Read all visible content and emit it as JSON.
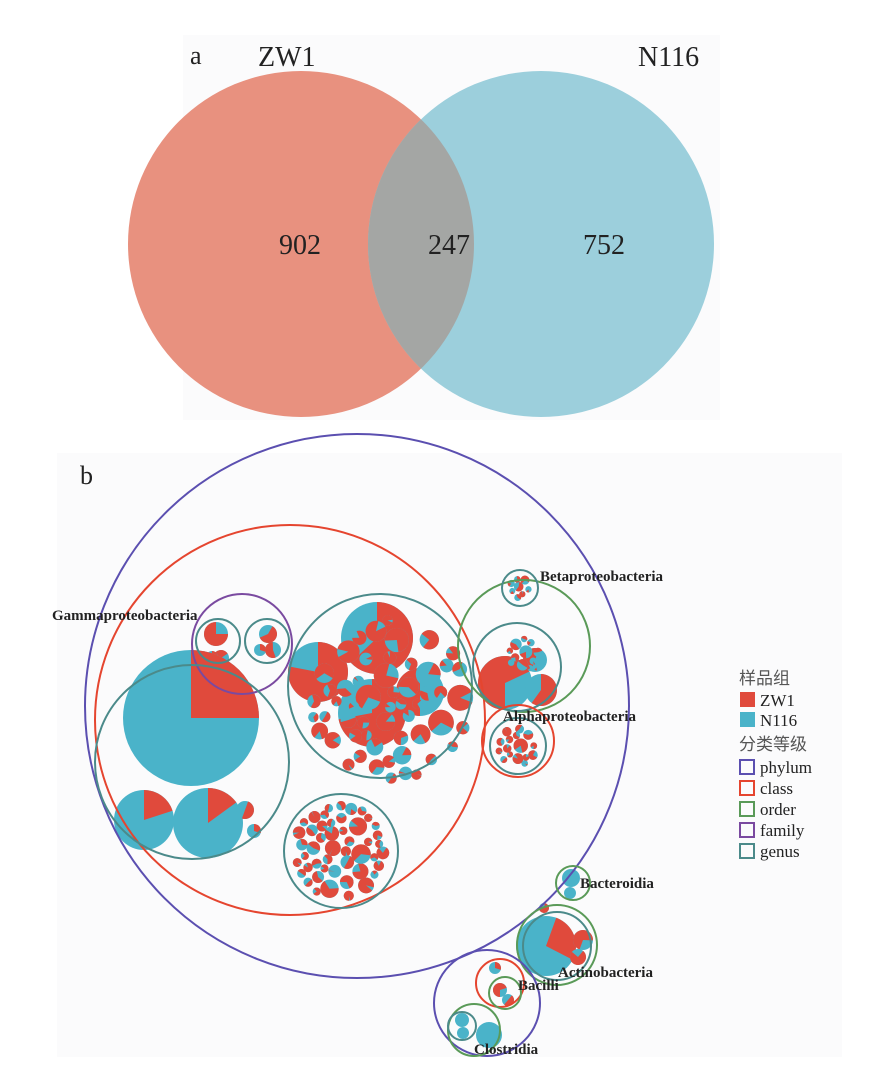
{
  "panel_a": {
    "label": "a",
    "set_left": {
      "name": "ZW1",
      "color": "#e8917f",
      "label_color": "#5a5aa8",
      "count": "902"
    },
    "set_right": {
      "name": "N116",
      "color": "#9ccfdc",
      "label_color": "#d9453a",
      "count": "752"
    },
    "overlap": {
      "count": "247",
      "color": "#a4a6a4"
    }
  },
  "panel_b": {
    "label": "b",
    "fill_colors": {
      "ZW1": "#e04a3c",
      "N116": "#4ab3c9"
    },
    "level_colors": {
      "phylum": "#5b4fb0",
      "class": "#e5452f",
      "order": "#5a9a58",
      "family": "#7a4aa0",
      "genus": "#4b8a8a"
    },
    "taxa_labels": [
      "Gammaproteobacteria",
      "Betaproteobacteria",
      "Alphaproteobacteria",
      "Bacteroidia",
      "Actinobacteria",
      "Bacilli",
      "Clostridia"
    ],
    "legend": {
      "sample_title": "样品组",
      "samples": [
        {
          "name": "ZW1",
          "color": "#e04a3c"
        },
        {
          "name": "N116",
          "color": "#4ab3c9"
        }
      ],
      "level_title": "分类等级",
      "levels": [
        {
          "name": "phylum",
          "color": "#5b4fb0"
        },
        {
          "name": "class",
          "color": "#e5452f"
        },
        {
          "name": "order",
          "color": "#5a9a58"
        },
        {
          "name": "family",
          "color": "#7a4aa0"
        },
        {
          "name": "genus",
          "color": "#4b8a8a"
        }
      ]
    }
  }
}
